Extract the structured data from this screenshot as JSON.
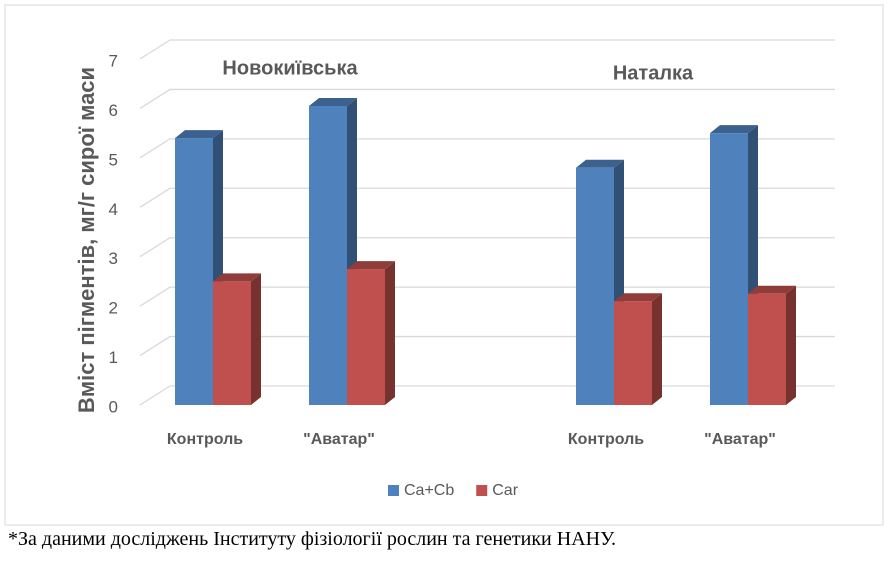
{
  "chart_data": {
    "type": "bar3d",
    "y_label": "Вміст пігментів, мг/г сирої маси",
    "annotations": [
      "Новокиївська",
      "Наталка"
    ],
    "categories": [
      "Контроль",
      "\"Аватар\"",
      null,
      "Контроль",
      "\"Аватар\""
    ],
    "series": [
      {
        "name": "Ca+Cb",
        "color": "#4f81bd",
        "values": [
          5.4,
          6.05,
          null,
          4.8,
          5.5
        ]
      },
      {
        "name": "Car",
        "color": "#c0504d",
        "values": [
          2.5,
          2.75,
          null,
          2.1,
          2.25
        ]
      }
    ],
    "ylim": [
      0,
      7
    ],
    "yticks": [
      0,
      1,
      2,
      3,
      4,
      5,
      6,
      7
    ],
    "grid": true,
    "legend": "bottom"
  },
  "footnote": "*За даними досліджень Інституту фізіології рослин та генетики НАНУ."
}
